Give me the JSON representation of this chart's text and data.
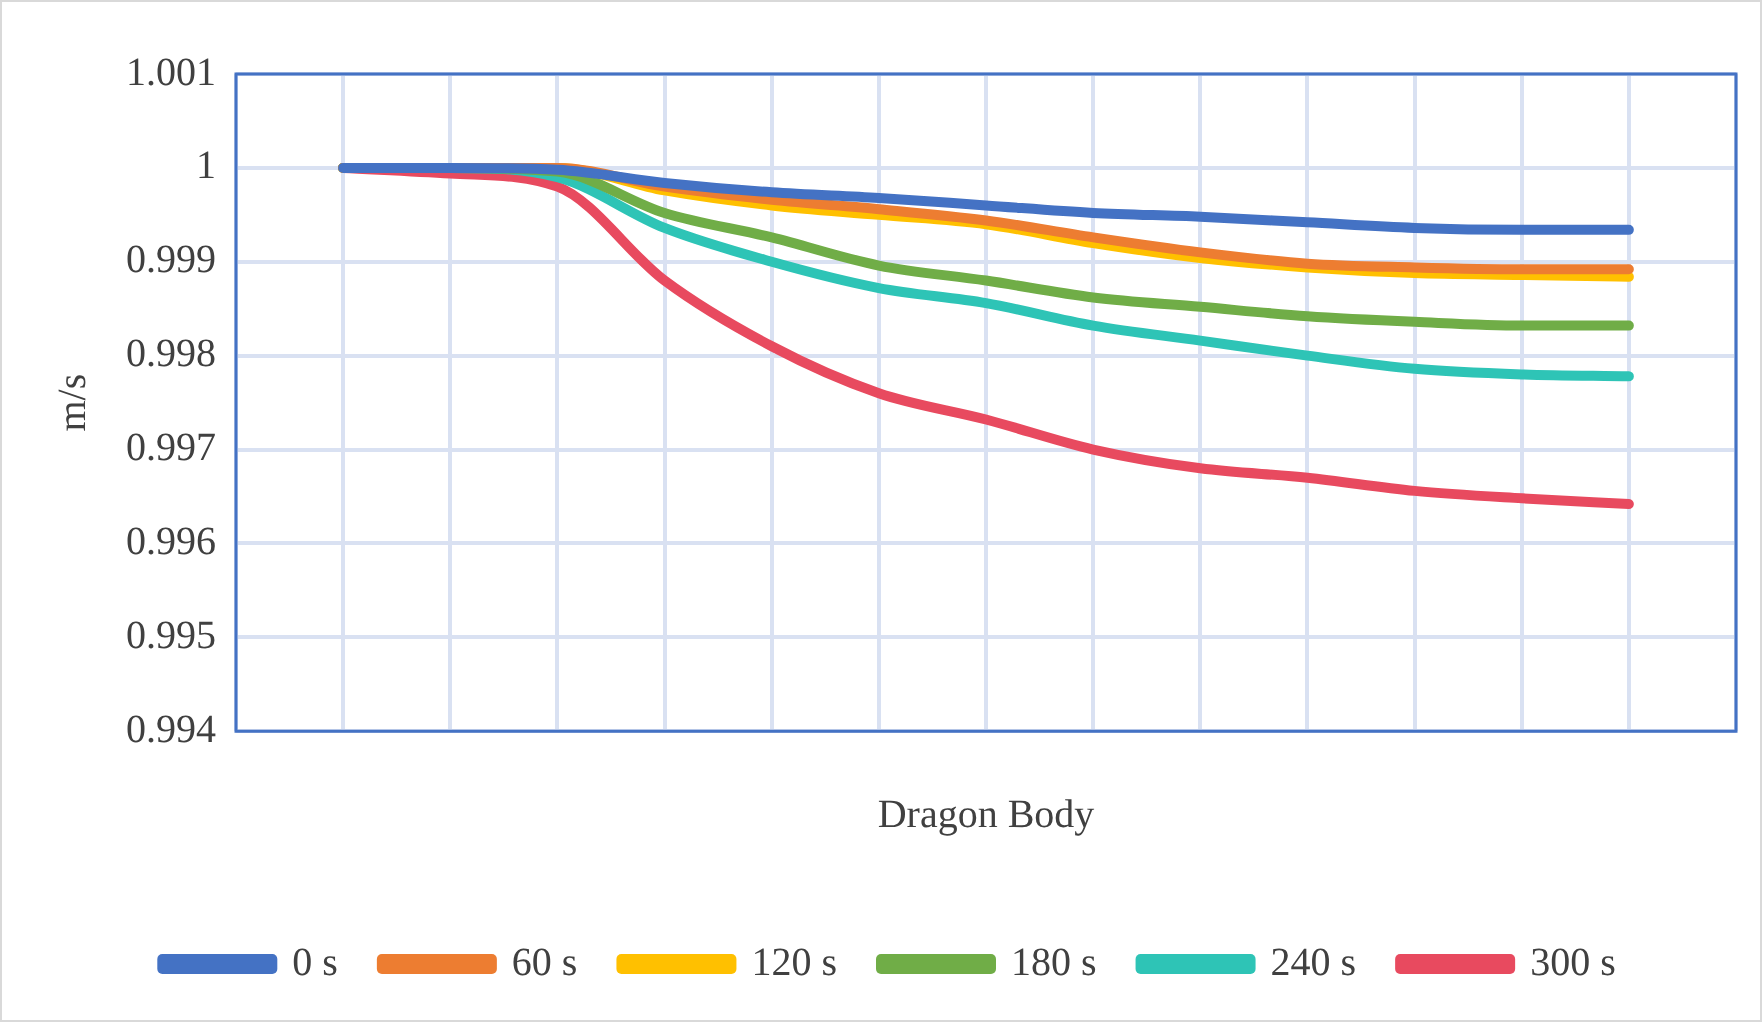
{
  "chart_data": {
    "type": "line",
    "xlabel": "Dragon Body",
    "ylabel": "m/s",
    "categories": [
      null,
      null,
      null,
      null,
      null,
      null,
      null,
      null,
      null,
      null,
      null,
      null,
      null,
      null,
      null
    ],
    "ylim": [
      0.994,
      1.001
    ],
    "yticks": [
      0.994,
      0.995,
      0.996,
      0.997,
      0.998,
      0.999,
      1,
      1.001
    ],
    "grid": true,
    "legend": "bottom",
    "marker": "none",
    "line_style": "solid",
    "series": [
      {
        "name": "0 s",
        "color": "#4472c4",
        "values": [
          null,
          1,
          1,
          0.99998,
          0.99984,
          0.99974,
          0.99968,
          0.9996,
          0.99952,
          0.99948,
          0.99942,
          0.99936,
          0.99934,
          0.99934,
          null
        ]
      },
      {
        "name": "60 s",
        "color": "#ed7d31",
        "values": [
          null,
          1,
          1,
          1,
          0.9998,
          0.99966,
          0.99956,
          0.99944,
          0.99926,
          0.9991,
          0.99898,
          0.99894,
          0.99892,
          0.99892,
          null
        ]
      },
      {
        "name": "120 s",
        "color": "#ffc000",
        "values": [
          null,
          1,
          1,
          1,
          0.99976,
          0.9996,
          0.9995,
          0.9994,
          0.9992,
          0.99904,
          0.99894,
          0.99888,
          0.99886,
          0.99884,
          null
        ]
      },
      {
        "name": "180 s",
        "color": "#70ad47",
        "values": [
          null,
          1,
          1,
          0.99996,
          0.99952,
          0.99926,
          0.99896,
          0.9988,
          0.99862,
          0.99852,
          0.99842,
          0.99836,
          0.99832,
          0.99832,
          null
        ]
      },
      {
        "name": "240 s",
        "color": "#2ec4b6",
        "values": [
          null,
          1,
          1,
          0.9999,
          0.99936,
          0.999,
          0.99872,
          0.99856,
          0.99832,
          0.99816,
          0.998,
          0.99786,
          0.9978,
          0.99778,
          null
        ]
      },
      {
        "name": "300 s",
        "color": "#e84a5f",
        "values": [
          null,
          1,
          0.99994,
          0.9998,
          0.9988,
          0.9981,
          0.9976,
          0.99732,
          0.997,
          0.9968,
          0.9967,
          0.99656,
          0.99648,
          0.99642,
          null
        ]
      }
    ]
  }
}
